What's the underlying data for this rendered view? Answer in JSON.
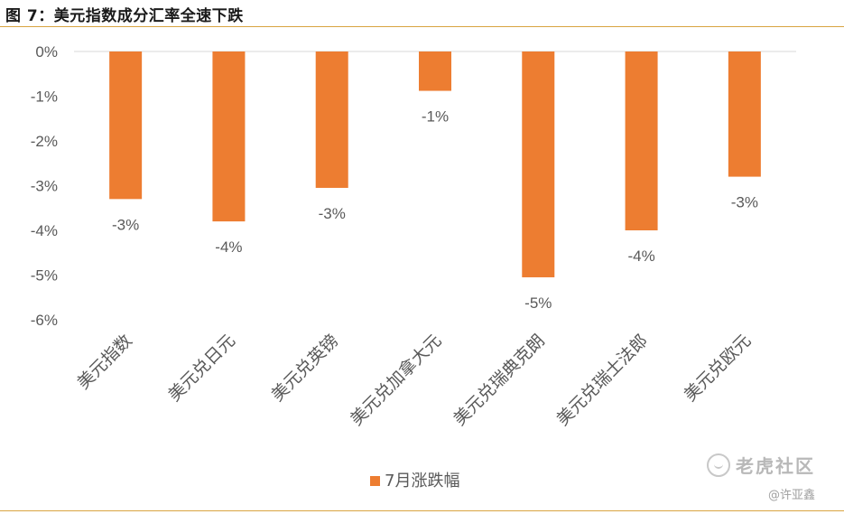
{
  "header": {
    "title": "图 7：美元指数成分汇率全速下跌"
  },
  "chart_data": {
    "type": "bar",
    "categories": [
      "美元指数",
      "美元兑日元",
      "美元兑英镑",
      "美元兑加拿大元",
      "美元兑瑞典克朗",
      "美元兑瑞士法郎",
      "美元兑欧元"
    ],
    "series": [
      {
        "name": "7月涨跌幅",
        "values": [
          -3.3,
          -3.8,
          -3.05,
          -0.88,
          -5.05,
          -4.0,
          -2.8
        ],
        "labels": [
          "-3%",
          "-4%",
          "-3%",
          "-1%",
          "-5%",
          "-4%",
          "-3%"
        ]
      }
    ],
    "ylim": [
      -6,
      0
    ],
    "yticks": [
      0,
      -1,
      -2,
      -3,
      -4,
      -5,
      -6
    ],
    "ytick_labels": [
      "0%",
      "-1%",
      "-2%",
      "-3%",
      "-4%",
      "-5%",
      "-6%"
    ],
    "grid": false,
    "legend": "bottom-center",
    "color": "#ed7d31"
  },
  "watermark": {
    "brand": "老虎社区",
    "handle": "@许亚鑫"
  }
}
